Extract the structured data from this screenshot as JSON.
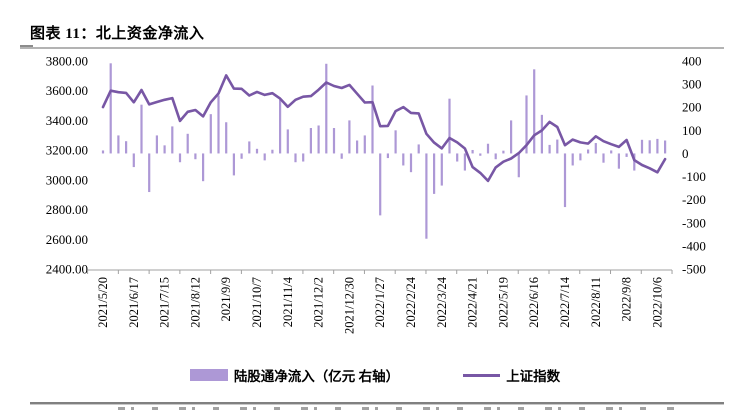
{
  "figure_title": "图表 11：北上资金净流入",
  "chart_data": {
    "type": "combo_bar_line",
    "title": "北上资金净流入",
    "x_frequency": "weekly",
    "x_tick_labels": [
      "2021/5/20",
      "2021/6/17",
      "2021/7/15",
      "2021/8/12",
      "2021/9/9",
      "2021/10/7",
      "2021/11/4",
      "2021/12/2",
      "2021/12/30",
      "2022/1/27",
      "2022/2/24",
      "2022/3/24",
      "2022/4/21",
      "2022/5/19",
      "2022/6/16",
      "2022/7/14",
      "2022/8/11",
      "2022/9/8",
      "2022/10/6"
    ],
    "x_ticks_every_n_points": 4,
    "left_axis": {
      "min": 2400,
      "max": 3800,
      "step": 200,
      "tick_labels": [
        "3800.00",
        "3600.00",
        "3400.00",
        "3200.00",
        "3000.00",
        "2800.00",
        "2600.00",
        "2400.00"
      ],
      "bound_series": "上证指数"
    },
    "right_axis": {
      "min": -500,
      "max": 400,
      "step": 100,
      "tick_labels": [
        "400",
        "300",
        "200",
        "100",
        "0",
        "-100",
        "-200",
        "-300",
        "-400",
        "-500"
      ],
      "bound_series": "陆股通净流入（亿元）"
    },
    "legend_position": "bottom",
    "legend": [
      {
        "label": "陆股通净流入（亿元 右轴）",
        "marker": "bar",
        "color": "#ad98d6"
      },
      {
        "label": "上证指数",
        "marker": "line",
        "color": "#7857a5"
      }
    ],
    "series": [
      {
        "name": "陆股通净流入（亿元 右轴）",
        "type": "bar",
        "axis": "right",
        "color": "#ad98d6",
        "values": [
          13,
          390,
          78,
          53,
          -59,
          211,
          -167,
          78,
          35,
          117,
          -38,
          85,
          -25,
          -120,
          170,
          251,
          135,
          -95,
          -23,
          52,
          20,
          -30,
          16,
          232,
          104,
          -38,
          -35,
          110,
          121,
          388,
          110,
          -23,
          143,
          56,
          78,
          294,
          -268,
          -20,
          100,
          -52,
          -81,
          39,
          -369,
          -175,
          -139,
          237,
          -35,
          -74,
          15,
          -10,
          42,
          -25,
          12,
          143,
          -103,
          251,
          364,
          167,
          37,
          60,
          -232,
          -52,
          -30,
          17,
          45,
          -40,
          13,
          -66,
          -15,
          -74,
          59,
          57,
          63,
          56
        ]
      },
      {
        "name": "上证指数",
        "type": "line",
        "axis": "left",
        "color": "#7857a5",
        "values": [
          3490,
          3600,
          3590,
          3585,
          3522,
          3605,
          3508,
          3524,
          3539,
          3550,
          3397,
          3458,
          3470,
          3427,
          3522,
          3581,
          3703,
          3614,
          3613,
          3568,
          3592,
          3572,
          3583,
          3547,
          3492,
          3539,
          3560,
          3564,
          3607,
          3655,
          3632,
          3618,
          3639,
          3580,
          3521,
          3523,
          3361,
          3363,
          3463,
          3490,
          3451,
          3447,
          3310,
          3251,
          3212,
          3282,
          3252,
          3211,
          3086,
          3047,
          2993,
          3084,
          3122,
          3144,
          3180,
          3233,
          3300,
          3333,
          3390,
          3356,
          3233,
          3271,
          3252,
          3244,
          3293,
          3260,
          3240,
          3222,
          3268,
          3133,
          3100,
          3078,
          3051,
          3140
        ]
      }
    ]
  }
}
